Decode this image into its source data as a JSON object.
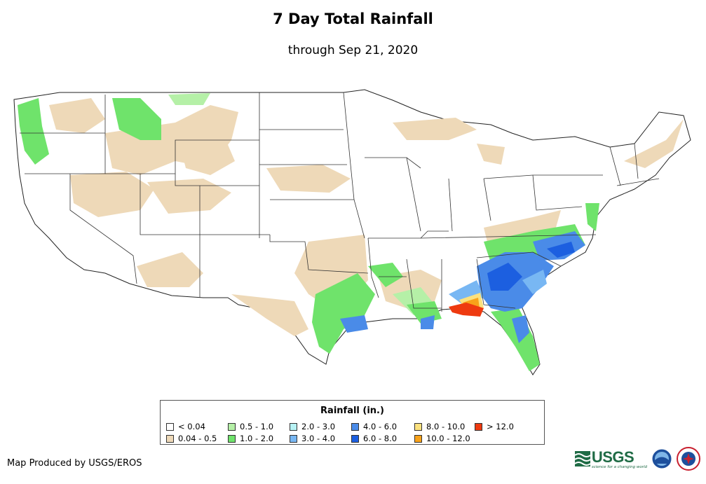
{
  "title": "7 Day Total Rainfall",
  "subtitle": "through Sep 21, 2020",
  "legend": {
    "title": "Rainfall (in.)",
    "items": [
      {
        "label": "< 0.04",
        "color": "#ffffff"
      },
      {
        "label": "0.04 - 0.5",
        "color": "#eed9b8"
      },
      {
        "label": "0.5 - 1.0",
        "color": "#b5f0a7"
      },
      {
        "label": "1.0 - 2.0",
        "color": "#6fe36b"
      },
      {
        "label": "2.0 - 3.0",
        "color": "#b7f2f4"
      },
      {
        "label": "3.0 - 4.0",
        "color": "#78b7f3"
      },
      {
        "label": "4.0 - 6.0",
        "color": "#4a8be8"
      },
      {
        "label": "6.0 - 8.0",
        "color": "#1c5fe0"
      },
      {
        "label": "8.0 - 10.0",
        "color": "#fbe17e"
      },
      {
        "label": "10.0 - 12.0",
        "color": "#f8a21a"
      },
      {
        "label": "> 12.0",
        "color": "#ee3a10"
      }
    ]
  },
  "credit": "Map Produced by USGS/EROS",
  "logos": {
    "usgs": "USGS",
    "usgs_tagline": "science for a changing world"
  }
}
